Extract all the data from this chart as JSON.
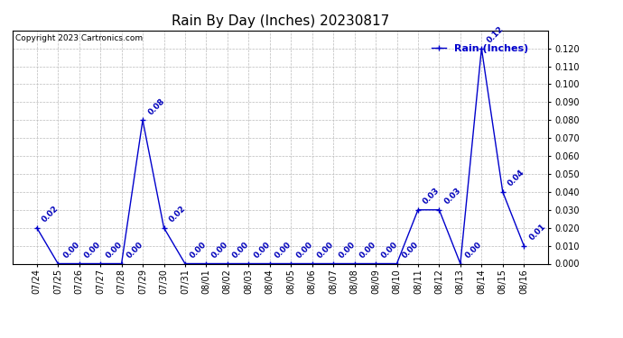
{
  "title": "Rain By Day (Inches) 20230817",
  "copyright_text": "Copyright 2023 Cartronics.com",
  "legend_label": "Rain (Inches)",
  "dates": [
    "07/24",
    "07/25",
    "07/26",
    "07/27",
    "07/28",
    "07/29",
    "07/30",
    "07/31",
    "08/01",
    "08/02",
    "08/03",
    "08/04",
    "08/05",
    "08/06",
    "08/07",
    "08/08",
    "08/09",
    "08/10",
    "08/11",
    "08/12",
    "08/13",
    "08/14",
    "08/15",
    "08/16"
  ],
  "values": [
    0.02,
    0.0,
    0.0,
    0.0,
    0.0,
    0.08,
    0.02,
    0.0,
    0.0,
    0.0,
    0.0,
    0.0,
    0.0,
    0.0,
    0.0,
    0.0,
    0.0,
    0.0,
    0.03,
    0.03,
    0.0,
    0.12,
    0.04,
    0.01
  ],
  "line_color": "#0000cc",
  "marker_color": "#0000cc",
  "label_color": "#0000bb",
  "grid_color": "#bbbbbb",
  "bg_color": "#ffffff",
  "ylim": [
    0.0,
    0.13
  ],
  "yticks": [
    0.0,
    0.01,
    0.02,
    0.03,
    0.04,
    0.05,
    0.06,
    0.07,
    0.08,
    0.09,
    0.1,
    0.11,
    0.12
  ],
  "title_fontsize": 11,
  "label_fontsize": 6.5,
  "tick_fontsize": 7,
  "copyright_fontsize": 6.5,
  "legend_fontsize": 8
}
